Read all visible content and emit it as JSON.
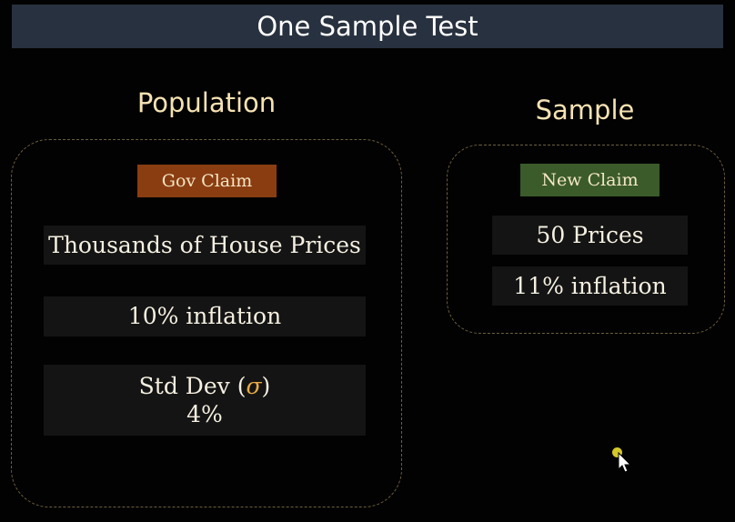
{
  "title": "One Sample Test",
  "population": {
    "heading": "Population",
    "tag": "Gov Claim",
    "items": [
      "Thousands of House Prices",
      "10% inflation"
    ],
    "std_dev_label": "Std Dev (",
    "std_dev_symbol": "σ",
    "std_dev_close": ")",
    "std_dev_value": "4%"
  },
  "sample": {
    "heading": "Sample",
    "tag": "New Claim",
    "items": [
      "50 Prices",
      "11% inflation"
    ]
  },
  "colors": {
    "gov_claim": "#8b3d12",
    "new_claim": "#3b5b2b",
    "sigma": "#e7ab45"
  },
  "icons": [
    "pointer-dot-icon",
    "mouse-cursor-icon"
  ]
}
